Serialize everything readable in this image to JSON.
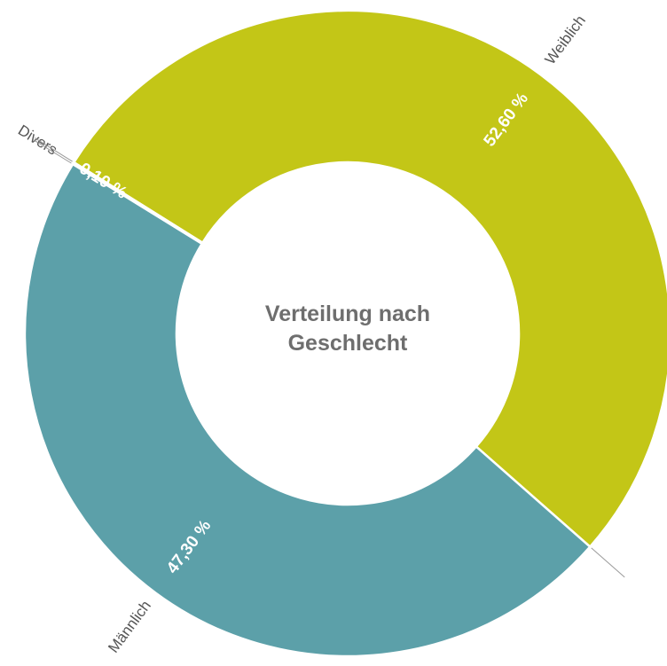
{
  "chart_data": {
    "type": "pie",
    "donut": true,
    "title": "Verteilung nach Geschlecht",
    "categories": [
      "Weiblich",
      "Männlich",
      "Divers"
    ],
    "values": [
      52.6,
      47.3,
      0.1
    ],
    "value_labels": [
      "52,60 %",
      "47,30 %",
      "0,10 %"
    ],
    "colors": [
      "#c3c617",
      "#5ca0a9",
      "#8e2a8e"
    ]
  }
}
